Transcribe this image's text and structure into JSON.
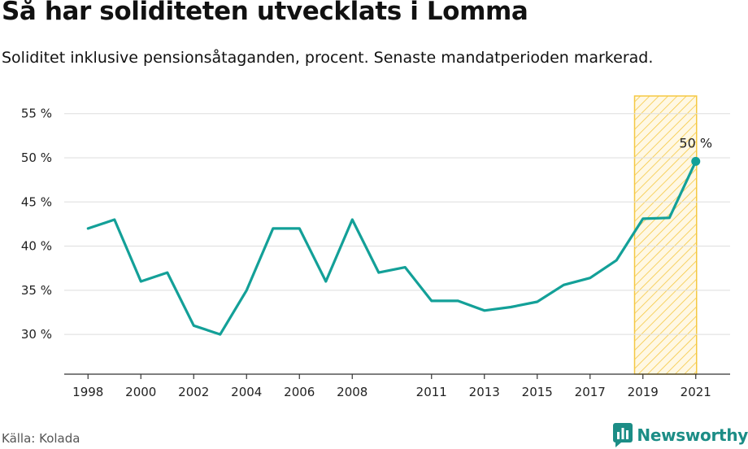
{
  "header": {
    "title": "Så har soliditeten utvecklats i Lomma",
    "subtitle": "Soliditet inklusive pensionsåtaganden, procent. Senaste mandatperioden markerad."
  },
  "footer": {
    "source": "Källa: Kolada",
    "brand": "Newsworthy",
    "brand_icon": "newsworthy-logo-icon"
  },
  "colors": {
    "line": "#13a098",
    "highlight_fill": "#f5c842",
    "grid": "#dddddd",
    "axis": "#333333",
    "brand": "#1c8d86"
  },
  "chart_data": {
    "type": "line",
    "title": "Så har soliditeten utvecklats i Lomma",
    "subtitle": "Soliditet inklusive pensionsåtaganden, procent. Senaste mandatperioden markerad.",
    "xlabel": "",
    "ylabel": "",
    "x": [
      1998,
      1999,
      2000,
      2001,
      2002,
      2003,
      2004,
      2005,
      2006,
      2007,
      2008,
      2009,
      2010,
      2011,
      2012,
      2013,
      2014,
      2015,
      2016,
      2017,
      2018,
      2019,
      2020,
      2021
    ],
    "series": [
      {
        "values": [
          42,
          43,
          36,
          37,
          31,
          30,
          35,
          42,
          42,
          36,
          43,
          37,
          37.6,
          33.8,
          33.8,
          32.7,
          33.1,
          33.7,
          35.6,
          36.4,
          38.4,
          43.1,
          43.2,
          49.6
        ]
      }
    ],
    "x_ticks": [
      1998,
      2000,
      2002,
      2004,
      2006,
      2008,
      2011,
      2013,
      2015,
      2017,
      2019,
      2021
    ],
    "x_tick_labels": [
      "1998",
      "2000",
      "2002",
      "2004",
      "2006",
      "2008",
      "2011",
      "2013",
      "2015",
      "2017",
      "2019",
      "2021"
    ],
    "y_ticks": [
      30,
      35,
      40,
      45,
      50,
      55
    ],
    "y_tick_labels": [
      "30 %",
      "35 %",
      "40 %",
      "45 %",
      "50 %",
      "55 %"
    ],
    "ylim": [
      25.5,
      57
    ],
    "xlim": [
      1997.1,
      2022.3
    ],
    "highlight_range": [
      2018.5,
      2021
    ],
    "end_label": "50 %",
    "grid": true,
    "legend": "none"
  }
}
